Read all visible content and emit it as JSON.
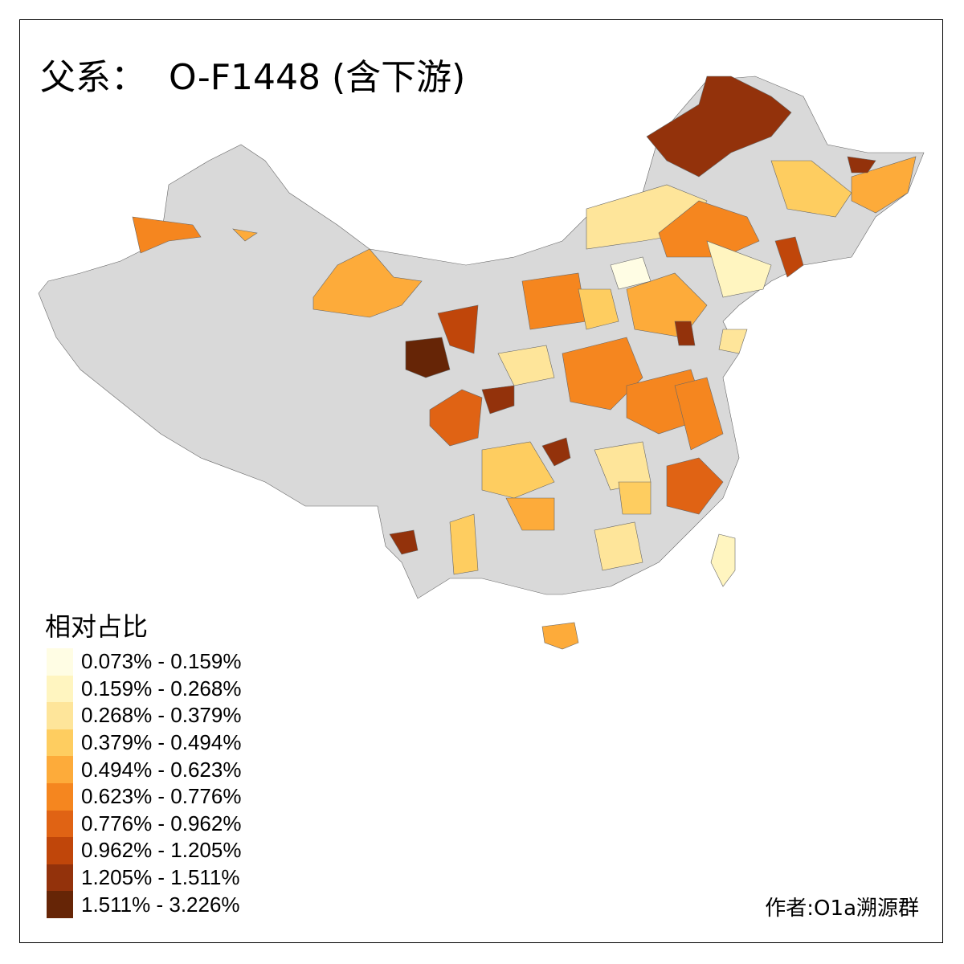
{
  "title": "父系：  O-F1448 (含下游)",
  "legend": {
    "title": "相对占比",
    "classes": [
      {
        "label": "0.073% - 0.159%",
        "color": "#FFFDE4"
      },
      {
        "label": "0.159% - 0.268%",
        "color": "#FFF5C0"
      },
      {
        "label": "0.268% - 0.379%",
        "color": "#FEE59A"
      },
      {
        "label": "0.379% - 0.494%",
        "color": "#FECD60"
      },
      {
        "label": "0.494% - 0.623%",
        "color": "#FDAB3A"
      },
      {
        "label": "0.623% - 0.776%",
        "color": "#F5861F"
      },
      {
        "label": "0.776% - 0.962%",
        "color": "#E06314"
      },
      {
        "label": "0.962% - 1.205%",
        "color": "#C0460A"
      },
      {
        "label": "1.205% - 1.511%",
        "color": "#93320B"
      },
      {
        "label": "1.511% - 3.226%",
        "color": "#662506"
      }
    ]
  },
  "no_data_color": "#D9D9D9",
  "author": "作者:O1a溯源群"
}
